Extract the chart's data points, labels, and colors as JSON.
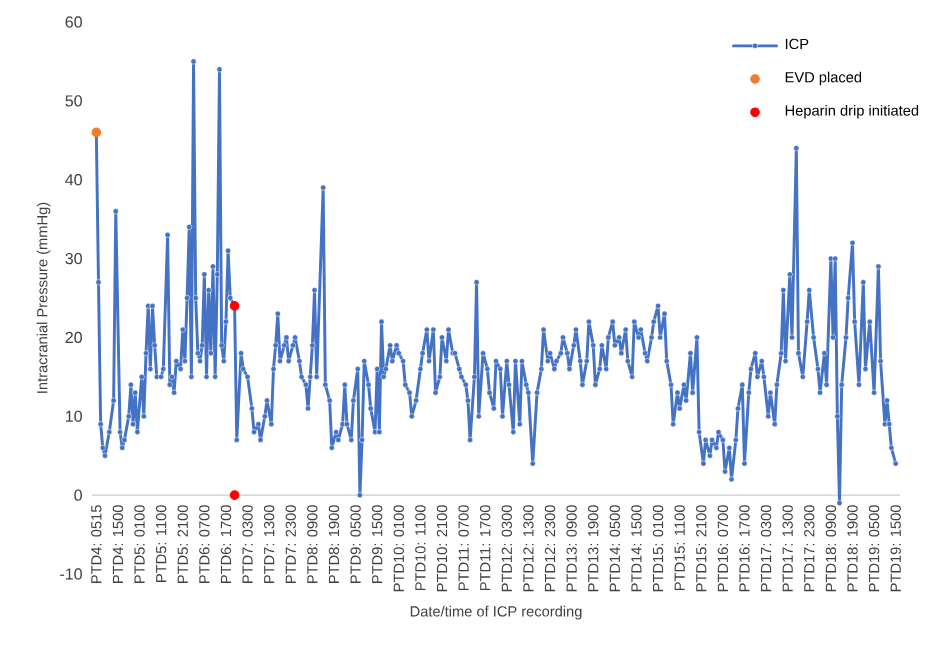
{
  "chart_data": {
    "type": "line",
    "xlabel": "Date/time of ICP recording",
    "ylabel": "Intracranial Pressure (mmHg)",
    "categories": [
      "PTD4: 0515",
      null,
      null,
      null,
      null,
      null,
      null,
      null,
      null,
      null,
      "PTD4: 1500",
      null,
      null,
      null,
      null,
      null,
      null,
      null,
      null,
      null,
      "PTD5: 0100",
      null,
      null,
      null,
      null,
      null,
      null,
      null,
      null,
      null,
      "PTD5: 1100",
      null,
      null,
      null,
      null,
      null,
      null,
      null,
      null,
      null,
      "PTD5: 2100",
      null,
      null,
      null,
      null,
      null,
      null,
      null,
      null,
      null,
      "PTD6: 0700",
      null,
      null,
      null,
      null,
      null,
      null,
      null,
      null,
      null,
      "PTD6: 1700",
      null,
      null,
      null,
      null,
      null,
      null,
      null,
      null,
      null,
      "PTD7: 0300",
      null,
      null,
      null,
      null,
      null,
      null,
      null,
      null,
      null,
      "PTD7: 1300",
      null,
      null,
      null,
      null,
      null,
      null,
      null,
      null,
      null,
      "PTD7: 2300",
      null,
      null,
      null,
      null,
      null,
      null,
      null,
      null,
      null,
      "PTD8: 0900",
      null,
      null,
      null,
      null,
      null,
      null,
      null,
      null,
      null,
      "PTD8: 1900",
      null,
      null,
      null,
      null,
      null,
      null,
      null,
      null,
      null,
      "PTD9: 0500",
      null,
      null,
      null,
      null,
      null,
      null,
      null,
      null,
      null,
      "PTD9: 1500",
      null,
      null,
      null,
      null,
      null,
      null,
      null,
      null,
      null,
      "PTD10: 0100",
      null,
      null,
      null,
      null,
      null,
      null,
      null,
      null,
      null,
      "PTD10: 1100",
      null,
      null,
      null,
      null,
      null,
      null,
      null,
      null,
      null,
      "PTD10: 2100",
      null,
      null,
      null,
      null,
      null,
      null,
      null,
      null,
      null,
      "PTD11: 0700",
      null,
      null,
      null,
      null,
      null,
      null,
      null,
      null,
      null,
      "PTD11: 1700",
      null,
      null,
      null,
      null,
      null,
      null,
      null,
      null,
      null,
      "PTD12: 0300",
      null,
      null,
      null,
      null,
      null,
      null,
      null,
      null,
      null,
      "PTD12: 1300",
      null,
      null,
      null,
      null,
      null,
      null,
      null,
      null,
      null,
      "PTD12: 2300",
      null,
      null,
      null,
      null,
      null,
      null,
      null,
      null,
      null,
      "PTD13: 0900",
      null,
      null,
      null,
      null,
      null,
      null,
      null,
      null,
      null,
      "PTD13: 1900",
      null,
      null,
      null,
      null,
      null,
      null,
      null,
      null,
      null,
      "PTD14: 0500",
      null,
      null,
      null,
      null,
      null,
      null,
      null,
      null,
      null,
      "PTD14: 1500",
      null,
      null,
      null,
      null,
      null,
      null,
      null,
      null,
      null,
      "PTD15: 0100",
      null,
      null,
      null,
      null,
      null,
      null,
      null,
      null,
      null,
      "PTD15: 1100",
      null,
      null,
      null,
      null,
      null,
      null,
      null,
      null,
      null,
      "PTD15: 2100",
      null,
      null,
      null,
      null,
      null,
      null,
      null,
      null,
      null,
      "PTD16: 0700",
      null,
      null,
      null,
      null,
      null,
      null,
      null,
      null,
      null,
      "PTD16: 1700",
      null,
      null,
      null,
      null,
      null,
      null,
      null,
      null,
      null,
      "PTD17: 0300",
      null,
      null,
      null,
      null,
      null,
      null,
      null,
      null,
      null,
      "PTD17: 1300",
      null,
      null,
      null,
      null,
      null,
      null,
      null,
      null,
      null,
      "PTD17: 2300",
      null,
      null,
      null,
      null,
      null,
      null,
      null,
      null,
      null,
      "PTD18: 0900",
      null,
      null,
      null,
      null,
      null,
      null,
      null,
      null,
      null,
      "PTD18: 1900",
      null,
      null,
      null,
      null,
      null,
      null,
      null,
      null,
      null,
      "PTD19: 0500",
      null,
      null,
      null,
      null,
      null,
      null,
      null,
      null,
      null,
      "PTD19: 1500"
    ],
    "ylim": [
      -10,
      60
    ],
    "yticks": [
      -10,
      0,
      10,
      20,
      30,
      40,
      50,
      60
    ],
    "legend": "top right",
    "marker": "circle",
    "series": [
      {
        "name": "ICP",
        "color": "#4472c4",
        "values": [
          46,
          27,
          9,
          6,
          5,
          null,
          8,
          null,
          12,
          36,
          null,
          8,
          6,
          7,
          null,
          10,
          14,
          9,
          13,
          8,
          null,
          15,
          10,
          18,
          24,
          16,
          24,
          19,
          15,
          null,
          15,
          16,
          null,
          33,
          14,
          15,
          13,
          17,
          null,
          16,
          21,
          17,
          25,
          34,
          15,
          55,
          25,
          18,
          17,
          19,
          28,
          15,
          26,
          18,
          29,
          15,
          28,
          54,
          19,
          17,
          22,
          31,
          25,
          null,
          24,
          7,
          null,
          18,
          16,
          null,
          15,
          null,
          11,
          8,
          null,
          9,
          7,
          null,
          10,
          12,
          null,
          9,
          16,
          19,
          23,
          17,
          null,
          19,
          20,
          17,
          null,
          19,
          20,
          null,
          17,
          15,
          null,
          14,
          11,
          15,
          19,
          26,
          15,
          null,
          null,
          39,
          14,
          null,
          12,
          6,
          null,
          8,
          7,
          null,
          9,
          14,
          9,
          null,
          7,
          12,
          null,
          16,
          0,
          7,
          17,
          null,
          14,
          11,
          null,
          8,
          16,
          8,
          22,
          15,
          16,
          null,
          19,
          17,
          null,
          19,
          18,
          null,
          17,
          14,
          null,
          13,
          10,
          null,
          12,
          null,
          16,
          18,
          null,
          21,
          17,
          null,
          21,
          13,
          null,
          15,
          20,
          null,
          17,
          21,
          null,
          18,
          18,
          null,
          16,
          15,
          null,
          14,
          12,
          7,
          null,
          15,
          27,
          10,
          null,
          18,
          null,
          16,
          13,
          null,
          11,
          17,
          null,
          16,
          10,
          null,
          17,
          14,
          null,
          8,
          17,
          null,
          9,
          17,
          null,
          14,
          13,
          null,
          4,
          null,
          13,
          null,
          16,
          21,
          null,
          17,
          18,
          null,
          16,
          17,
          null,
          18,
          20,
          null,
          18,
          16,
          null,
          19,
          21,
          null,
          17,
          14,
          null,
          17,
          22,
          null,
          19,
          14,
          null,
          16,
          19,
          null,
          16,
          20,
          null,
          22,
          19,
          null,
          20,
          18,
          null,
          21,
          17,
          null,
          15,
          22,
          null,
          20,
          21,
          null,
          18,
          17,
          null,
          20,
          22,
          null,
          24,
          20,
          null,
          23,
          17,
          null,
          14,
          9,
          null,
          13,
          11,
          null,
          14,
          12,
          null,
          18,
          13,
          null,
          20,
          8,
          null,
          4,
          7,
          null,
          5,
          7,
          null,
          6,
          8,
          null,
          7,
          3,
          null,
          6,
          2,
          null,
          7,
          11,
          null,
          14,
          4,
          null,
          13,
          16,
          null,
          18,
          15,
          null,
          17,
          15,
          null,
          10,
          13,
          null,
          9,
          14,
          null,
          18,
          26,
          17,
          null,
          28,
          20,
          null,
          44,
          18,
          null,
          15,
          null,
          22,
          26,
          null,
          20,
          null,
          16,
          13,
          null,
          18,
          14,
          null,
          30,
          20,
          30,
          10,
          -1,
          14,
          null,
          20,
          25,
          null,
          32,
          22,
          null,
          14,
          null,
          27,
          16,
          null,
          22,
          null,
          13,
          null,
          29,
          17,
          null,
          9,
          12,
          9,
          6,
          null,
          4
        ]
      },
      {
        "name": "EVD placed",
        "type": "scatter",
        "color": "#ed7d31",
        "values": [
          46,
          null,
          null,
          null,
          null,
          null,
          null,
          null,
          null,
          null,
          null,
          null,
          null,
          null,
          null,
          null,
          null,
          null,
          null,
          null,
          null,
          null,
          null,
          null,
          null,
          null,
          null,
          null,
          null,
          null,
          null,
          null,
          null,
          null,
          null,
          null,
          null,
          null,
          null,
          null,
          null,
          null,
          null,
          null,
          null,
          null,
          null,
          null,
          null,
          null,
          null,
          null,
          null,
          null,
          null,
          null,
          null,
          null,
          null,
          null,
          null,
          null,
          null,
          null,
          null,
          null,
          null,
          null,
          null,
          null,
          null,
          null,
          null,
          null,
          null,
          null,
          null,
          null,
          null,
          null,
          null,
          null,
          null,
          null,
          null,
          null,
          null,
          null,
          null,
          null,
          null,
          null,
          null,
          null,
          null,
          null,
          null,
          null,
          null,
          null,
          null,
          null,
          null,
          null,
          null,
          null,
          null,
          null,
          null,
          null,
          null,
          null,
          null,
          null,
          null,
          null,
          null,
          null,
          null,
          null,
          null,
          null,
          null,
          null,
          null,
          null,
          null,
          null,
          null,
          null,
          null,
          null,
          null,
          null,
          null,
          null,
          null,
          null,
          null,
          null,
          null,
          null,
          null,
          null,
          null,
          null,
          null,
          null,
          null,
          null,
          null,
          null,
          null,
          null,
          null,
          null,
          null,
          null,
          null,
          null,
          null,
          null,
          null,
          null,
          null,
          null,
          null,
          null,
          null,
          null,
          null,
          null,
          null,
          null,
          null,
          null,
          null,
          null,
          null,
          null,
          null,
          null,
          null,
          null,
          null,
          null,
          null,
          null,
          null,
          null,
          null,
          null,
          null,
          null,
          null,
          null,
          null,
          null,
          null,
          null,
          null,
          null,
          null,
          null,
          null,
          null,
          null,
          null,
          null,
          null,
          null,
          null,
          null,
          null,
          null,
          null,
          null,
          null,
          null,
          null,
          null,
          null,
          null,
          null,
          null,
          null,
          null,
          null,
          null,
          null,
          null,
          null,
          null,
          null,
          null,
          null,
          null,
          null,
          null,
          null,
          null,
          null,
          null,
          null,
          null,
          null,
          null,
          null,
          null,
          null,
          null,
          null,
          null,
          null,
          null,
          null,
          null,
          null,
          null,
          null,
          null,
          null,
          null,
          null,
          null,
          null,
          null,
          null,
          null,
          null,
          null,
          null,
          null,
          null,
          null,
          null,
          null,
          null,
          null,
          null,
          null,
          null,
          null,
          null,
          null,
          null,
          null,
          null,
          null,
          null,
          null,
          null,
          null,
          null,
          null,
          null,
          null,
          null,
          null,
          null,
          null,
          null,
          null,
          null,
          null,
          null,
          null,
          null,
          null,
          null,
          null,
          null,
          null,
          null,
          null,
          null,
          null,
          null,
          null,
          null,
          null,
          null,
          null,
          null,
          null,
          null,
          null,
          null,
          null,
          null,
          null,
          null,
          null,
          null,
          null,
          null,
          null,
          null,
          null,
          null,
          null,
          null,
          null,
          null,
          null,
          null,
          null,
          null,
          null,
          null,
          null,
          null,
          null,
          null,
          null,
          null,
          null,
          null,
          null,
          null,
          null,
          null,
          null,
          null,
          null,
          null,
          null,
          null,
          null,
          null,
          null
        ]
      },
      {
        "name": "Heparin drip initiated",
        "type": "scatter",
        "color": "#ff0000",
        "values": [
          null,
          null,
          null,
          null,
          null,
          null,
          null,
          null,
          null,
          null,
          null,
          null,
          null,
          null,
          null,
          null,
          null,
          null,
          null,
          null,
          null,
          null,
          null,
          null,
          null,
          null,
          null,
          null,
          null,
          null,
          null,
          null,
          null,
          null,
          null,
          null,
          null,
          null,
          null,
          null,
          null,
          null,
          null,
          null,
          null,
          null,
          null,
          null,
          null,
          null,
          null,
          null,
          null,
          null,
          null,
          null,
          null,
          null,
          null,
          null,
          null,
          null,
          null,
          null,
          24,
          null,
          null,
          null,
          null,
          null,
          null,
          null,
          null,
          null,
          null,
          null,
          null,
          null,
          null,
          null,
          null,
          null,
          null,
          null,
          null,
          null,
          null,
          null,
          null,
          null,
          null,
          null,
          null,
          null,
          null,
          null,
          null,
          null,
          null,
          null,
          null,
          null,
          null,
          null,
          null,
          null,
          null,
          null,
          null,
          null,
          null,
          null,
          null,
          null,
          null,
          null,
          null,
          null,
          null,
          null,
          null,
          null,
          null,
          null,
          null,
          null,
          null,
          null,
          null,
          null,
          null,
          null,
          null,
          null,
          null,
          null,
          null,
          null,
          null,
          null,
          null,
          null,
          null,
          null,
          null,
          null,
          null,
          null,
          null,
          null,
          null,
          null,
          null,
          null,
          null,
          null,
          null,
          null,
          null,
          null,
          null,
          null,
          null,
          null,
          null,
          null,
          null,
          null,
          null,
          null,
          null,
          null,
          null,
          null,
          null,
          null,
          null,
          null,
          null,
          null,
          null,
          null,
          null,
          null,
          null,
          null,
          null,
          null,
          null,
          null,
          null,
          null,
          null,
          null,
          null,
          null,
          null,
          null,
          null,
          null,
          null,
          null,
          null,
          null,
          null,
          null,
          null,
          null,
          null,
          null,
          null,
          null,
          null,
          null,
          null,
          null,
          null,
          null,
          null,
          null,
          null,
          null,
          null,
          null,
          null,
          null,
          null,
          null,
          null,
          null,
          null,
          null,
          null,
          null,
          null,
          null,
          null,
          null,
          null,
          null,
          null,
          null,
          null,
          null,
          null,
          null,
          null,
          null,
          null,
          null,
          null,
          null,
          null,
          null,
          null,
          null,
          null,
          null,
          null,
          null,
          null,
          null,
          null,
          null,
          null,
          null,
          null,
          null,
          null,
          null,
          null,
          null,
          null,
          null,
          null,
          null,
          null,
          null,
          null,
          null,
          null,
          null,
          null,
          null,
          null,
          null,
          null,
          null,
          null,
          null,
          null,
          null,
          null,
          null,
          null,
          null,
          null,
          null,
          null,
          null,
          null,
          null,
          null,
          null,
          null,
          null,
          null,
          null,
          null,
          null,
          null,
          null,
          null,
          null,
          null,
          null,
          null,
          null,
          null,
          null,
          null,
          null,
          null,
          null,
          null,
          null,
          null,
          null,
          null,
          null,
          null,
          null,
          null,
          null,
          null,
          null,
          null,
          null,
          null,
          null,
          null,
          null,
          null,
          null,
          null,
          null,
          null,
          null,
          null,
          null,
          null,
          null,
          null,
          null,
          null,
          null,
          null,
          null,
          null,
          null,
          null,
          null,
          null,
          null,
          null,
          null,
          null,
          null,
          null,
          null,
          null
        ]
      },
      {
        "type": "scatter",
        "color": "#ff0000",
        "values": [
          null,
          null,
          null,
          null,
          null,
          null,
          null,
          null,
          null,
          null,
          null,
          null,
          null,
          null,
          null,
          null,
          null,
          null,
          null,
          null,
          null,
          null,
          null,
          null,
          null,
          null,
          null,
          null,
          null,
          null,
          null,
          null,
          null,
          null,
          null,
          null,
          null,
          null,
          null,
          null,
          null,
          null,
          null,
          null,
          null,
          null,
          null,
          null,
          null,
          null,
          null,
          null,
          null,
          null,
          null,
          null,
          null,
          null,
          null,
          null,
          null,
          null,
          null,
          null,
          0,
          null,
          null,
          null,
          null,
          null,
          null,
          null,
          null,
          null,
          null,
          null,
          null,
          null,
          null,
          null,
          null,
          null,
          null,
          null,
          null,
          null,
          null,
          null,
          null,
          null,
          null,
          null,
          null,
          null,
          null,
          null,
          null,
          null,
          null,
          null,
          null,
          null,
          null,
          null,
          null,
          null,
          null,
          null,
          null,
          null,
          null,
          null,
          null,
          null,
          null,
          null,
          null,
          null,
          null,
          null,
          null,
          null,
          null,
          null,
          null,
          null,
          null,
          null,
          null,
          null,
          null,
          null,
          null,
          null,
          null,
          null,
          null,
          null,
          null,
          null,
          null,
          null,
          null,
          null,
          null,
          null,
          null,
          null,
          null,
          null,
          null,
          null,
          null,
          null,
          null,
          null,
          null,
          null,
          null,
          null,
          null,
          null,
          null,
          null,
          null,
          null,
          null,
          null,
          null,
          null,
          null,
          null,
          null,
          null,
          null,
          null,
          null,
          null,
          null,
          null,
          null,
          null,
          null,
          null,
          null,
          null,
          null,
          null,
          null,
          null,
          null,
          null,
          null,
          null,
          null,
          null,
          null,
          null,
          null,
          null,
          null,
          null,
          null,
          null,
          null,
          null,
          null,
          null,
          null,
          null,
          null,
          null,
          null,
          null,
          null,
          null,
          null,
          null,
          null,
          null,
          null,
          null,
          null,
          null,
          null,
          null,
          null,
          null,
          null,
          null,
          null,
          null,
          null,
          null,
          null,
          null,
          null,
          null,
          null,
          null,
          null,
          null,
          null,
          null,
          null,
          null,
          null,
          null,
          null,
          null,
          null,
          null,
          null,
          null,
          null,
          null,
          null,
          null,
          null,
          null,
          null,
          null,
          null,
          null,
          null,
          null,
          null,
          null,
          null,
          null,
          null,
          null,
          null,
          null,
          null,
          null,
          null,
          null,
          null,
          null,
          null,
          null,
          null,
          null,
          null,
          null,
          null,
          null,
          null,
          null,
          null,
          null,
          null,
          null,
          null,
          null,
          null,
          null,
          null,
          null,
          null,
          null,
          null,
          null,
          null,
          null,
          null,
          null,
          null,
          null,
          null,
          null,
          null,
          null,
          null,
          null,
          null,
          null,
          null,
          null,
          null,
          null,
          null,
          null,
          null,
          null,
          null,
          null,
          null,
          null,
          null,
          null,
          null,
          null,
          null,
          null,
          null,
          null,
          null,
          null,
          null,
          null,
          null,
          null,
          null,
          null,
          null,
          null,
          null,
          null,
          null,
          null,
          null,
          null,
          null,
          null,
          null,
          null,
          null,
          null,
          null,
          null,
          null,
          null,
          null,
          null,
          null,
          null,
          null,
          null,
          null
        ]
      }
    ]
  }
}
